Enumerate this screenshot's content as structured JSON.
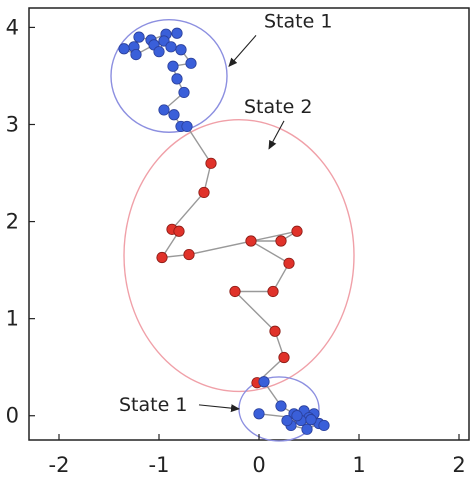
{
  "chart_data": {
    "type": "scatter",
    "title": "",
    "xlabel": "",
    "ylabel": "",
    "xlim": [
      -2.3,
      2.1
    ],
    "ylim": [
      -0.25,
      4.2
    ],
    "x_ticks": [
      -2,
      -1,
      0,
      1,
      2
    ],
    "x_tick_labels": [
      "-2",
      "-1",
      "0",
      "1",
      "2"
    ],
    "y_ticks": [
      0,
      1,
      2,
      3,
      4
    ],
    "y_tick_labels": [
      "0",
      "1",
      "2",
      "3",
      "4"
    ],
    "grid": false,
    "colors": {
      "state1_point": "#3a5fd9",
      "state2_point": "#e0322a",
      "state1_circle": "#8c8fe0",
      "state2_circle": "#f0a0a8",
      "trajectory": "#999999",
      "axis": "#222222"
    },
    "regions": [
      {
        "label": "State 1",
        "center": [
          -0.9,
          3.5
        ],
        "radius_x": 0.58,
        "radius_y": 0.58
      },
      {
        "label": "State 2",
        "center": [
          -0.2,
          1.65
        ],
        "radius_x": 1.15,
        "radius_y": 1.4
      },
      {
        "label": "State 1",
        "center": [
          0.2,
          0.07
        ],
        "radius_x": 0.4,
        "radius_y": 0.33
      }
    ],
    "annotations": [
      {
        "text": "State 1",
        "x": 0.05,
        "y": 4.0,
        "arrow_to": [
          -0.3,
          3.6
        ]
      },
      {
        "text": "State 2",
        "x": -0.15,
        "y": 3.12,
        "arrow_to": [
          0.1,
          2.75
        ]
      },
      {
        "text": "State 1",
        "x": -1.4,
        "y": 0.05,
        "arrow_to": [
          -0.2,
          0.07
        ]
      }
    ],
    "series": [
      {
        "state": "State 1",
        "points": [
          [
            -0.82,
            3.94
          ],
          [
            -0.93,
            3.93
          ],
          [
            -1.08,
            3.87
          ],
          [
            -1.2,
            3.9
          ],
          [
            -1.25,
            3.8
          ],
          [
            -1.35,
            3.78
          ],
          [
            -1.23,
            3.72
          ],
          [
            -1.05,
            3.82
          ],
          [
            -1.0,
            3.75
          ],
          [
            -0.95,
            3.86
          ],
          [
            -0.88,
            3.8
          ],
          [
            -0.78,
            3.77
          ],
          [
            -0.68,
            3.63
          ],
          [
            -0.86,
            3.6
          ],
          [
            -0.82,
            3.47
          ],
          [
            -0.75,
            3.33
          ],
          [
            -0.95,
            3.15
          ],
          [
            -0.85,
            3.1
          ],
          [
            -0.78,
            2.98
          ],
          [
            -0.72,
            2.98
          ]
        ]
      },
      {
        "state": "State 2",
        "points": [
          [
            -0.48,
            2.6
          ],
          [
            -0.55,
            2.3
          ],
          [
            -0.87,
            1.92
          ],
          [
            -0.8,
            1.9
          ],
          [
            -0.97,
            1.63
          ],
          [
            -0.7,
            1.66
          ],
          [
            0.38,
            1.9
          ],
          [
            0.22,
            1.8
          ],
          [
            -0.08,
            1.8
          ],
          [
            0.3,
            1.57
          ],
          [
            0.14,
            1.28
          ],
          [
            -0.24,
            1.28
          ],
          [
            0.16,
            0.87
          ],
          [
            0.25,
            0.6
          ],
          [
            -0.02,
            0.34
          ]
        ]
      },
      {
        "state": "State 1",
        "points": [
          [
            0.05,
            0.35
          ],
          [
            0.22,
            0.1
          ],
          [
            0.35,
            0.02
          ],
          [
            0.45,
            0.05
          ],
          [
            0.55,
            0.02
          ],
          [
            0.5,
            -0.02
          ],
          [
            0.42,
            -0.05
          ],
          [
            0.38,
            0.0
          ],
          [
            0.6,
            -0.08
          ],
          [
            0.48,
            -0.14
          ],
          [
            0.32,
            -0.1
          ],
          [
            0.28,
            -0.05
          ],
          [
            0.65,
            -0.1
          ],
          [
            0.52,
            -0.04
          ],
          [
            0.0,
            0.02
          ]
        ]
      }
    ]
  }
}
